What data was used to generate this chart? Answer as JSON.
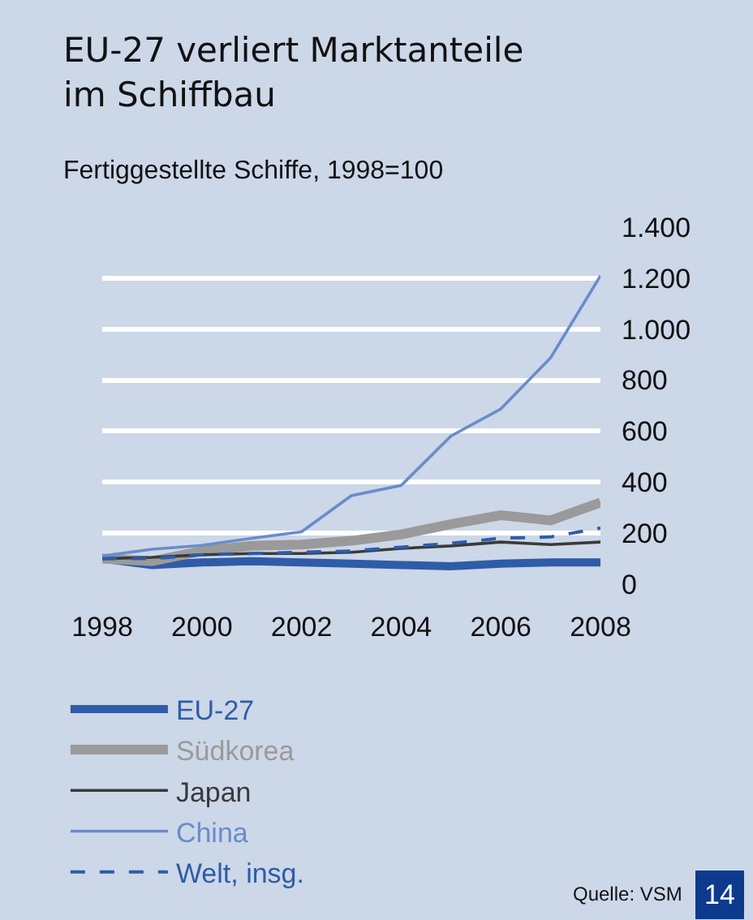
{
  "chart_data": {
    "type": "line",
    "title": "EU-27 verliert Marktanteile\nim Schiffbau",
    "subtitle": "Fertiggestellte Schiffe, 1998=100",
    "x": [
      1998,
      1999,
      2000,
      2001,
      2002,
      2003,
      2004,
      2005,
      2006,
      2007,
      2008
    ],
    "series": [
      {
        "name": "EU-27",
        "color": "#2e5ca8",
        "values": [
          100,
          75,
          85,
          90,
          85,
          80,
          75,
          70,
          80,
          85,
          85
        ]
      },
      {
        "name": "Südkorea",
        "color": "#9a9a9a",
        "values": [
          100,
          90,
          130,
          150,
          155,
          170,
          195,
          235,
          270,
          250,
          320
        ]
      },
      {
        "name": "Japan",
        "color": "#3a3a3a",
        "values": [
          100,
          105,
          115,
          120,
          120,
          125,
          140,
          150,
          165,
          155,
          165
        ]
      },
      {
        "name": "China",
        "color": "#6a8ccb",
        "values": [
          110,
          137,
          152,
          180,
          205,
          347,
          387,
          581,
          687,
          888,
          1209
        ]
      },
      {
        "name": "Welt, insg.",
        "color": "#2e5ca8",
        "line_style": "dashed",
        "values": [
          100,
          100,
          115,
          120,
          125,
          130,
          145,
          160,
          180,
          185,
          220
        ]
      }
    ],
    "xlim": [
      1998,
      2008
    ],
    "xticks": [
      1998,
      2000,
      2002,
      2004,
      2006,
      2008
    ],
    "ylim": [
      0,
      1400
    ],
    "yticks": [
      {
        "value": 0,
        "label": "0"
      },
      {
        "value": 200,
        "label": "200"
      },
      {
        "value": 400,
        "label": "400"
      },
      {
        "value": 600,
        "label": "600"
      },
      {
        "value": 800,
        "label": "800"
      },
      {
        "value": 1000,
        "label": "1.000"
      },
      {
        "value": 1200,
        "label": "1.200"
      },
      {
        "value": 1400,
        "label": "1.400"
      }
    ],
    "grid": "y",
    "legend": "bottom",
    "line_style": "solid",
    "annotations": [
      "Quelle: VSM",
      "14"
    ]
  }
}
